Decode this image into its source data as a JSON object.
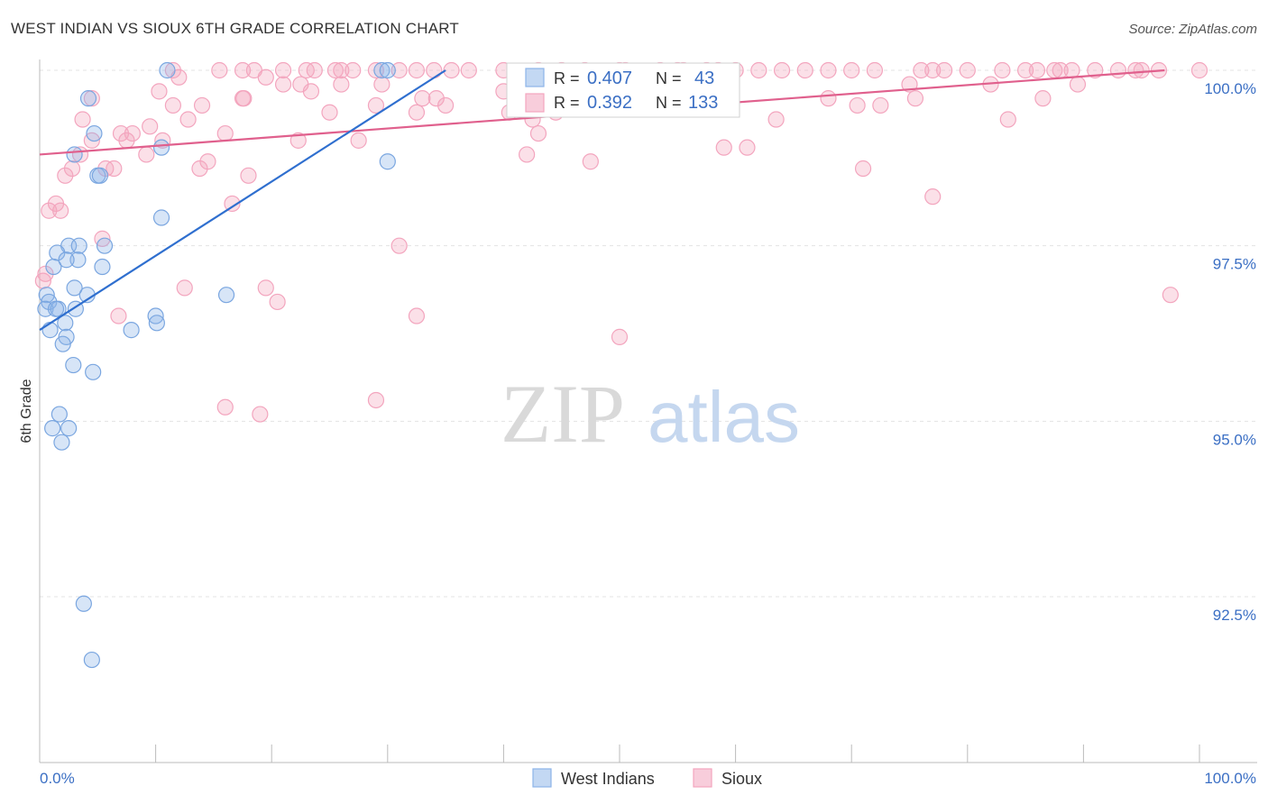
{
  "title": "WEST INDIAN VS SIOUX 6TH GRADE CORRELATION CHART",
  "source": "Source: ZipAtlas.com",
  "watermark": {
    "zip": "ZIP",
    "atlas": "atlas"
  },
  "legend_box": {
    "rows": [
      {
        "r_label": "R =",
        "r_value": "0.407",
        "n_label": "N =",
        "n_value": "43"
      },
      {
        "r_label": "R =",
        "r_value": "0.392",
        "n_label": "N =",
        "n_value": "133"
      }
    ]
  },
  "chart_data": {
    "type": "scatter",
    "title": "WEST INDIAN VS SIOUX 6TH GRADE CORRELATION CHART",
    "xlabel": "",
    "ylabel": "6th Grade",
    "xlim": [
      0,
      100
    ],
    "ylim": [
      90.2,
      100.3
    ],
    "x_tick_labels": [
      "0.0%",
      "100.0%"
    ],
    "y_ticks": [
      92.5,
      95.0,
      97.5,
      100.0
    ],
    "y_tick_labels": [
      "92.5%",
      "95.0%",
      "97.5%",
      "100.0%"
    ],
    "legend": [
      "West Indians",
      "Sioux"
    ],
    "colors": {
      "West Indians": "#8db4e8",
      "Sioux": "#f3a5be",
      "West Indians line": "#2f6fcf",
      "Sioux line": "#e0608d"
    },
    "series": [
      {
        "name": "West Indians",
        "R": 0.407,
        "N": 43,
        "trend": [
          [
            0.0,
            96.3
          ],
          [
            35.0,
            100.0
          ]
        ],
        "points": [
          [
            11.0,
            100.0
          ],
          [
            29.5,
            100.0
          ],
          [
            30.0,
            100.0
          ],
          [
            4.2,
            99.6
          ],
          [
            4.7,
            99.1
          ],
          [
            3.0,
            98.8
          ],
          [
            5.0,
            98.5
          ],
          [
            5.2,
            98.5
          ],
          [
            10.5,
            98.9
          ],
          [
            30.0,
            98.7
          ],
          [
            10.5,
            97.9
          ],
          [
            2.5,
            97.5
          ],
          [
            3.4,
            97.5
          ],
          [
            1.5,
            97.4
          ],
          [
            3.3,
            97.3
          ],
          [
            5.4,
            97.2
          ],
          [
            1.2,
            97.2
          ],
          [
            2.3,
            97.3
          ],
          [
            5.6,
            97.5
          ],
          [
            3.0,
            96.9
          ],
          [
            4.1,
            96.8
          ],
          [
            0.6,
            96.8
          ],
          [
            16.1,
            96.8
          ],
          [
            0.8,
            96.7
          ],
          [
            0.5,
            96.6
          ],
          [
            3.1,
            96.6
          ],
          [
            1.6,
            96.6
          ],
          [
            1.4,
            96.6
          ],
          [
            10.0,
            96.5
          ],
          [
            10.1,
            96.4
          ],
          [
            2.2,
            96.4
          ],
          [
            0.9,
            96.3
          ],
          [
            7.9,
            96.3
          ],
          [
            2.3,
            96.2
          ],
          [
            2.0,
            96.1
          ],
          [
            2.9,
            95.8
          ],
          [
            4.6,
            95.7
          ],
          [
            1.7,
            95.1
          ],
          [
            1.1,
            94.9
          ],
          [
            2.5,
            94.9
          ],
          [
            1.9,
            94.7
          ],
          [
            3.8,
            92.4
          ],
          [
            4.5,
            91.6
          ]
        ]
      },
      {
        "name": "Sioux",
        "R": 0.392,
        "N": 133,
        "trend": [
          [
            0.0,
            98.8
          ],
          [
            97.0,
            100.0
          ]
        ],
        "points": [
          [
            11.5,
            100.0
          ],
          [
            15.5,
            100.0
          ],
          [
            17.5,
            100.0
          ],
          [
            18.5,
            100.0
          ],
          [
            21.0,
            100.0
          ],
          [
            23.0,
            100.0
          ],
          [
            23.7,
            100.0
          ],
          [
            25.5,
            100.0
          ],
          [
            26.0,
            100.0
          ],
          [
            27.0,
            100.0
          ],
          [
            29.0,
            100.0
          ],
          [
            31.0,
            100.0
          ],
          [
            32.5,
            100.0
          ],
          [
            34.0,
            100.0
          ],
          [
            35.5,
            100.0
          ],
          [
            37.0,
            100.0
          ],
          [
            40.0,
            100.0
          ],
          [
            43.0,
            100.0
          ],
          [
            45.0,
            100.0
          ],
          [
            47.0,
            100.0
          ],
          [
            50.0,
            100.0
          ],
          [
            53.5,
            100.0
          ],
          [
            55.0,
            100.0
          ],
          [
            57.5,
            100.0
          ],
          [
            60.0,
            100.0
          ],
          [
            64.0,
            100.0
          ],
          [
            66.0,
            100.0
          ],
          [
            68.0,
            100.0
          ],
          [
            70.0,
            100.0
          ],
          [
            72.0,
            100.0
          ],
          [
            76.0,
            100.0
          ],
          [
            77.0,
            100.0
          ],
          [
            80.0,
            100.0
          ],
          [
            83.0,
            100.0
          ],
          [
            85.0,
            100.0
          ],
          [
            86.0,
            100.0
          ],
          [
            87.5,
            100.0
          ],
          [
            89.0,
            100.0
          ],
          [
            91.0,
            100.0
          ],
          [
            93.0,
            100.0
          ],
          [
            94.5,
            100.0
          ],
          [
            96.5,
            100.0
          ],
          [
            100.0,
            100.0
          ],
          [
            12.0,
            99.9
          ],
          [
            21.0,
            99.8
          ],
          [
            22.5,
            99.8
          ],
          [
            26.0,
            99.8
          ],
          [
            29.5,
            99.8
          ],
          [
            41.5,
            99.8
          ],
          [
            45.5,
            99.8
          ],
          [
            57.0,
            99.8
          ],
          [
            75.0,
            99.8
          ],
          [
            82.0,
            99.8
          ],
          [
            89.5,
            99.8
          ],
          [
            10.3,
            99.7
          ],
          [
            17.6,
            99.6
          ],
          [
            23.4,
            99.7
          ],
          [
            33.0,
            99.6
          ],
          [
            34.2,
            99.6
          ],
          [
            68.0,
            99.6
          ],
          [
            70.5,
            99.5
          ],
          [
            72.5,
            99.5
          ],
          [
            75.5,
            99.6
          ],
          [
            86.5,
            99.6
          ],
          [
            4.5,
            99.6
          ],
          [
            11.5,
            99.5
          ],
          [
            14.0,
            99.5
          ],
          [
            17.5,
            99.6
          ],
          [
            25.0,
            99.4
          ],
          [
            29.0,
            99.5
          ],
          [
            32.5,
            99.4
          ],
          [
            40.5,
            99.4
          ],
          [
            44.5,
            99.4
          ],
          [
            42.5,
            99.3
          ],
          [
            63.5,
            99.3
          ],
          [
            83.5,
            99.3
          ],
          [
            9.5,
            99.2
          ],
          [
            12.8,
            99.3
          ],
          [
            7.0,
            99.1
          ],
          [
            8.0,
            99.1
          ],
          [
            16.0,
            99.1
          ],
          [
            10.6,
            99.0
          ],
          [
            7.5,
            99.0
          ],
          [
            4.5,
            99.0
          ],
          [
            22.3,
            99.0
          ],
          [
            27.5,
            99.0
          ],
          [
            43.0,
            99.1
          ],
          [
            61.0,
            98.9
          ],
          [
            59.0,
            98.9
          ],
          [
            3.5,
            98.8
          ],
          [
            9.2,
            98.8
          ],
          [
            14.5,
            98.7
          ],
          [
            5.7,
            98.6
          ],
          [
            6.4,
            98.6
          ],
          [
            42.0,
            98.8
          ],
          [
            47.5,
            98.7
          ],
          [
            2.8,
            98.6
          ],
          [
            13.8,
            98.6
          ],
          [
            18.0,
            98.5
          ],
          [
            2.2,
            98.5
          ],
          [
            71.0,
            98.6
          ],
          [
            77.0,
            98.2
          ],
          [
            1.4,
            98.1
          ],
          [
            1.8,
            98.0
          ],
          [
            0.8,
            98.0
          ],
          [
            16.6,
            98.1
          ],
          [
            31.0,
            97.5
          ],
          [
            5.4,
            97.6
          ],
          [
            0.5,
            97.1
          ],
          [
            0.3,
            97.0
          ],
          [
            12.5,
            96.9
          ],
          [
            19.5,
            96.9
          ],
          [
            20.5,
            96.7
          ],
          [
            6.8,
            96.5
          ],
          [
            32.5,
            96.5
          ],
          [
            97.5,
            96.8
          ],
          [
            50.0,
            96.2
          ],
          [
            16.0,
            95.2
          ],
          [
            19.0,
            95.1
          ],
          [
            29.0,
            95.3
          ],
          [
            19.5,
            99.9
          ],
          [
            35.0,
            99.5
          ],
          [
            50.5,
            100.0
          ],
          [
            62.0,
            100.0
          ],
          [
            78.0,
            100.0
          ],
          [
            88.0,
            100.0
          ],
          [
            95.0,
            100.0
          ],
          [
            40.0,
            99.7
          ],
          [
            3.7,
            99.3
          ],
          [
            55.5,
            100.0
          ],
          [
            58.5,
            100.0
          ]
        ]
      }
    ]
  }
}
